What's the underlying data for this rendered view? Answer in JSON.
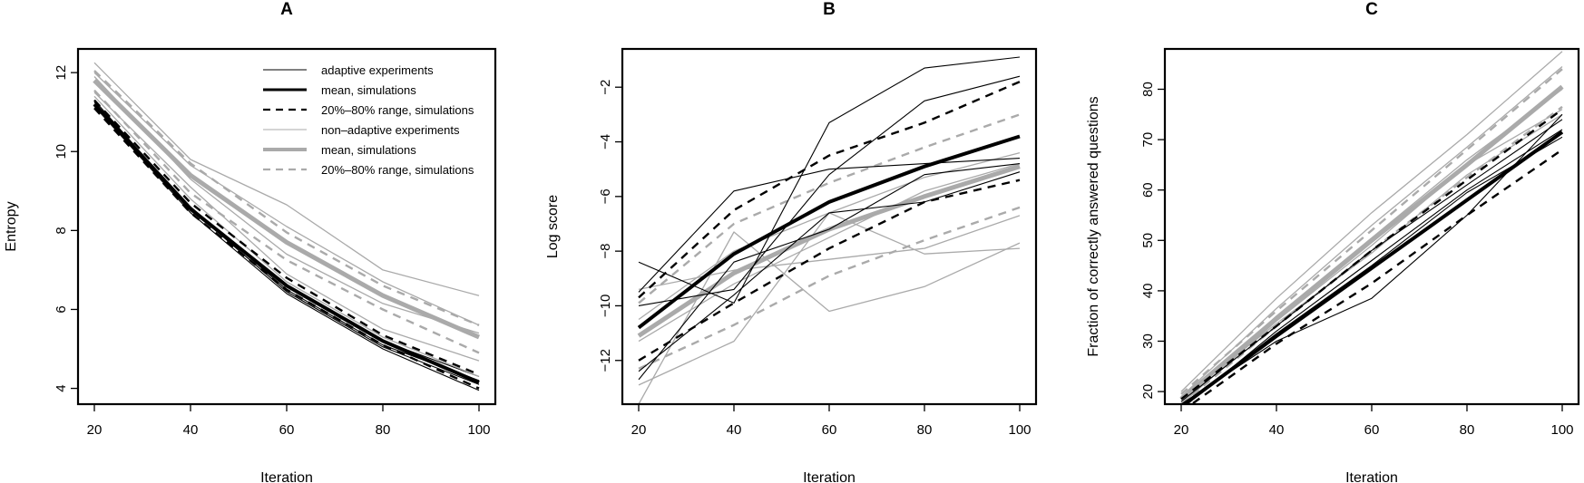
{
  "colors": {
    "adaptive": "#000000",
    "nonadaptive": "#aaaaaa",
    "frame": "#000000"
  },
  "legend": [
    {
      "label": "adaptive experiments",
      "color": "#000000",
      "width": 1,
      "dash": false
    },
    {
      "label": "mean, simulations",
      "color": "#000000",
      "width": 3,
      "dash": false
    },
    {
      "label": "20%–80% range, simulations",
      "color": "#000000",
      "width": 2.2,
      "dash": true
    },
    {
      "label": "non–adaptive experiments",
      "color": "#aaaaaa",
      "width": 1,
      "dash": false
    },
    {
      "label": "mean, simulations",
      "color": "#aaaaaa",
      "width": 4,
      "dash": false
    },
    {
      "label": "20%–80% range, simulations",
      "color": "#aaaaaa",
      "width": 2.2,
      "dash": true
    }
  ],
  "chart_data": [
    {
      "type": "line",
      "title": "A",
      "xlabel": "Iteration",
      "ylabel": "Entropy",
      "xlim": [
        20,
        100
      ],
      "ylim": [
        3.6,
        12.6
      ],
      "xticks": [
        "20",
        "40",
        "60",
        "80",
        "100"
      ],
      "yticks": [
        "4",
        "6",
        "8",
        "10",
        "12"
      ],
      "x": [
        20,
        40,
        60,
        80,
        100
      ],
      "series": [
        {
          "name": "adaptive experiments",
          "style": "adaptive-exp",
          "values": [
            11.25,
            8.6,
            6.5,
            5.1,
            4.2
          ]
        },
        {
          "name": "adaptive experiments",
          "style": "adaptive-exp",
          "values": [
            11.2,
            8.5,
            6.6,
            5.2,
            4.3
          ]
        },
        {
          "name": "adaptive experiments",
          "style": "adaptive-exp",
          "values": [
            11.3,
            8.55,
            6.45,
            5.05,
            4.1
          ]
        },
        {
          "name": "adaptive experiments",
          "style": "adaptive-exp",
          "values": [
            11.15,
            8.45,
            6.4,
            5.0,
            3.95
          ]
        },
        {
          "name": "non-adaptive experiments",
          "style": "nonadaptive-exp",
          "values": [
            12.25,
            9.8,
            8.65,
            7.0,
            6.35
          ]
        },
        {
          "name": "non-adaptive experiments",
          "style": "nonadaptive-exp",
          "values": [
            12.0,
            9.65,
            8.1,
            6.7,
            5.6
          ]
        },
        {
          "name": "non-adaptive experiments",
          "style": "nonadaptive-exp",
          "values": [
            11.9,
            9.3,
            7.4,
            6.15,
            5.4
          ]
        },
        {
          "name": "non-adaptive experiments",
          "style": "nonadaptive-exp",
          "values": [
            11.5,
            9.1,
            6.9,
            5.5,
            4.7
          ]
        },
        {
          "name": "non-adaptive experiments",
          "style": "nonadaptive-exp",
          "values": [
            11.4,
            8.8,
            6.7,
            5.3,
            4.3
          ]
        },
        {
          "name": "20%–80% range, simulations",
          "style": "nonadaptive-range",
          "values": [
            12.05,
            9.7,
            7.95,
            6.6,
            5.6
          ]
        },
        {
          "name": "20%–80% range, simulations",
          "style": "nonadaptive-range",
          "values": [
            11.55,
            8.95,
            7.25,
            6.0,
            4.9
          ]
        },
        {
          "name": "mean, simulations",
          "style": "nonadaptive-mean",
          "values": [
            11.8,
            9.4,
            7.7,
            6.35,
            5.3
          ]
        },
        {
          "name": "20%–80% range, simulations",
          "style": "adaptive-range",
          "values": [
            11.3,
            8.7,
            6.8,
            5.35,
            4.35
          ]
        },
        {
          "name": "20%–80% range, simulations",
          "style": "adaptive-range",
          "values": [
            11.1,
            8.45,
            6.5,
            5.1,
            4.0
          ]
        },
        {
          "name": "mean, simulations",
          "style": "adaptive-mean",
          "values": [
            11.2,
            8.55,
            6.6,
            5.2,
            4.15
          ]
        }
      ]
    },
    {
      "type": "line",
      "title": "B",
      "xlabel": "Iteration",
      "ylabel": "Log score",
      "xlim": [
        20,
        100
      ],
      "ylim": [
        -13.6,
        -0.6
      ],
      "xticks": [
        "20",
        "40",
        "60",
        "80",
        "100"
      ],
      "yticks": [
        "−12",
        "−10",
        "−8",
        "−6",
        "−4",
        "−2"
      ],
      "x": [
        20,
        40,
        60,
        80,
        100
      ],
      "series": [
        {
          "name": "non-adaptive experiments",
          "style": "nonadaptive-exp",
          "values": [
            -13.6,
            -7.3,
            -10.2,
            -9.3,
            -7.7
          ]
        },
        {
          "name": "non-adaptive experiments",
          "style": "nonadaptive-exp",
          "values": [
            -12.9,
            -11.3,
            -6.6,
            -8.1,
            -7.9
          ]
        },
        {
          "name": "non-adaptive experiments",
          "style": "nonadaptive-exp",
          "values": [
            -9.4,
            -8.7,
            -8.3,
            -7.9,
            -6.7
          ]
        },
        {
          "name": "non-adaptive experiments",
          "style": "nonadaptive-exp",
          "values": [
            -11.3,
            -9.2,
            -7.5,
            -5.8,
            -4.8
          ]
        },
        {
          "name": "non-adaptive experiments",
          "style": "nonadaptive-exp",
          "values": [
            -10.5,
            -8.0,
            -6.6,
            -5.3,
            -4.4
          ]
        },
        {
          "name": "20%–80% range, simulations",
          "style": "nonadaptive-range",
          "values": [
            -9.9,
            -7.0,
            -5.5,
            -4.2,
            -3.0
          ]
        },
        {
          "name": "20%–80% range, simulations",
          "style": "nonadaptive-range",
          "values": [
            -12.3,
            -10.7,
            -8.9,
            -7.6,
            -6.4
          ]
        },
        {
          "name": "mean, simulations",
          "style": "nonadaptive-mean",
          "values": [
            -11.1,
            -8.8,
            -7.2,
            -6.0,
            -4.9
          ]
        },
        {
          "name": "adaptive experiments",
          "style": "adaptive-exp",
          "values": [
            -8.4,
            -9.9,
            -3.3,
            -1.3,
            -0.9
          ]
        },
        {
          "name": "adaptive experiments",
          "style": "adaptive-exp",
          "values": [
            -9.5,
            -5.8,
            -5.0,
            -4.8,
            -4.6
          ]
        },
        {
          "name": "adaptive experiments",
          "style": "adaptive-exp",
          "values": [
            -10.0,
            -9.4,
            -5.2,
            -2.5,
            -1.6
          ]
        },
        {
          "name": "adaptive experiments",
          "style": "adaptive-exp",
          "values": [
            -12.7,
            -8.4,
            -7.2,
            -5.2,
            -4.8
          ]
        },
        {
          "name": "adaptive experiments",
          "style": "adaptive-exp",
          "values": [
            -12.4,
            -9.6,
            -6.6,
            -6.2,
            -5.1
          ]
        },
        {
          "name": "20%–80% range, simulations",
          "style": "adaptive-range",
          "values": [
            -9.7,
            -6.5,
            -4.5,
            -3.3,
            -1.8
          ]
        },
        {
          "name": "20%–80% range, simulations",
          "style": "adaptive-range",
          "values": [
            -12.0,
            -9.9,
            -7.9,
            -6.2,
            -5.4
          ]
        },
        {
          "name": "mean, simulations",
          "style": "adaptive-mean",
          "values": [
            -10.8,
            -8.1,
            -6.2,
            -4.9,
            -3.8
          ]
        }
      ]
    },
    {
      "type": "line",
      "title": "C",
      "xlabel": "Iteration",
      "ylabel": "Fraction of correctly answered questions",
      "xlim": [
        20,
        100
      ],
      "ylim": [
        17.5,
        88
      ],
      "xticks": [
        "20",
        "40",
        "60",
        "80",
        "100"
      ],
      "yticks": [
        "20",
        "30",
        "40",
        "50",
        "60",
        "70",
        "80"
      ],
      "x": [
        20,
        40,
        60,
        80,
        100
      ],
      "series": [
        {
          "name": "non-adaptive experiments",
          "style": "nonadaptive-exp",
          "values": [
            20.0,
            38.5,
            55.5,
            71.0,
            87.5
          ]
        },
        {
          "name": "non-adaptive experiments",
          "style": "nonadaptive-exp",
          "values": [
            19.0,
            36.5,
            53.0,
            68.5,
            84.5
          ]
        },
        {
          "name": "non-adaptive experiments",
          "style": "nonadaptive-exp",
          "values": [
            18.0,
            35.0,
            50.5,
            66.0,
            80.0
          ]
        },
        {
          "name": "non-adaptive experiments",
          "style": "nonadaptive-exp",
          "values": [
            17.5,
            34.0,
            49.0,
            65.0,
            76.0
          ]
        },
        {
          "name": "non-adaptive experiments",
          "style": "nonadaptive-exp",
          "values": [
            18.5,
            33.5,
            47.5,
            63.0,
            75.0
          ]
        },
        {
          "name": "20%–80% range, simulations",
          "style": "nonadaptive-range",
          "values": [
            19.5,
            36.0,
            52.0,
            68.0,
            84.0
          ]
        },
        {
          "name": "20%–80% range, simulations",
          "style": "nonadaptive-range",
          "values": [
            17.5,
            33.0,
            48.0,
            62.5,
            76.5
          ]
        },
        {
          "name": "mean, simulations",
          "style": "nonadaptive-mean",
          "values": [
            18.5,
            34.5,
            50.0,
            65.0,
            80.5
          ]
        },
        {
          "name": "adaptive experiments",
          "style": "adaptive-exp",
          "values": [
            17.5,
            30.0,
            38.5,
            55.0,
            75.0
          ]
        },
        {
          "name": "adaptive experiments",
          "style": "adaptive-exp",
          "values": [
            18.0,
            33.0,
            48.0,
            61.0,
            74.0
          ]
        },
        {
          "name": "adaptive experiments",
          "style": "adaptive-exp",
          "values": [
            16.5,
            32.0,
            46.0,
            60.0,
            72.0
          ]
        },
        {
          "name": "adaptive experiments",
          "style": "adaptive-exp",
          "values": [
            17.0,
            31.5,
            45.0,
            59.5,
            70.5
          ]
        },
        {
          "name": "20%–80% range, simulations",
          "style": "adaptive-range",
          "values": [
            18.5,
            33.0,
            48.0,
            62.0,
            76.0
          ]
        },
        {
          "name": "20%–80% range, simulations",
          "style": "adaptive-range",
          "values": [
            16.0,
            29.5,
            41.5,
            55.0,
            68.0
          ]
        },
        {
          "name": "mean, simulations",
          "style": "adaptive-mean",
          "values": [
            17.0,
            31.0,
            44.5,
            58.0,
            71.5
          ]
        }
      ]
    }
  ]
}
